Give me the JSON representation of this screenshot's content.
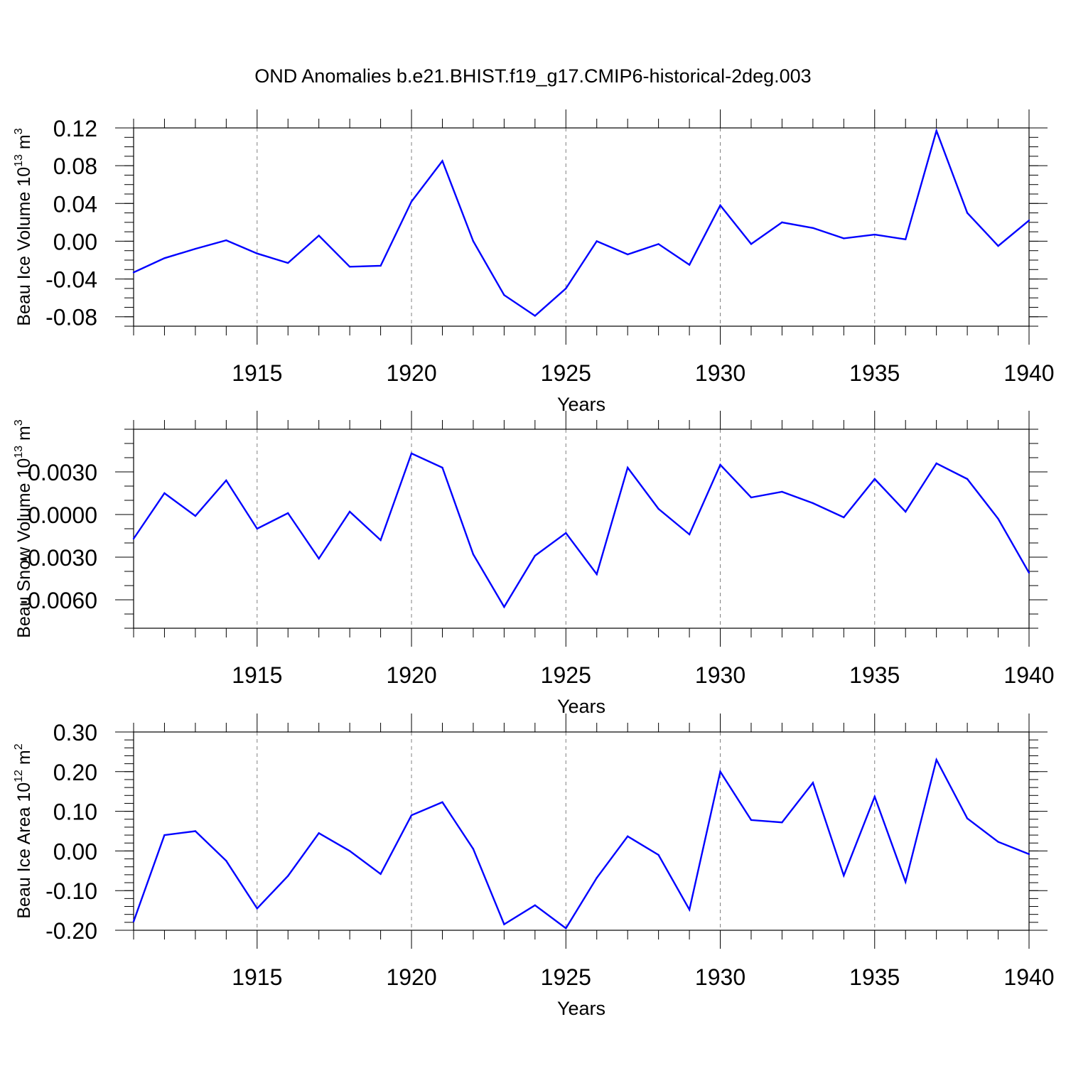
{
  "title": "OND Anomalies b.e21.BHIST.f19_g17.CMIP6-historical-2deg.003",
  "colors": {
    "line": "#0000ff",
    "axis": "#000000",
    "grid": "#808080",
    "background": "#ffffff"
  },
  "chart_data": [
    {
      "type": "line",
      "name": "panel-ice-volume",
      "ylabel": "Beau Ice Volume 10",
      "ylabel_sup": "13",
      "ylabel_unit": " m",
      "ylabel_unit_sup": "3",
      "xlabel": "Years",
      "xlim": [
        1911,
        1940
      ],
      "ylim": [
        -0.09,
        0.12
      ],
      "yticks": [
        -0.08,
        -0.04,
        0.0,
        0.04,
        0.08,
        0.12
      ],
      "ytick_labels": [
        "-0.08",
        "-0.04",
        "0.00",
        "0.04",
        "0.08",
        "0.12"
      ],
      "yminor_step": 0.01,
      "xticks": [
        1915,
        1920,
        1925,
        1930,
        1935,
        1940
      ],
      "xtick_labels": [
        "1915",
        "1920",
        "1925",
        "1930",
        "1935",
        "1940"
      ],
      "grid": "vertical-dashed",
      "x": [
        1911,
        1912,
        1913,
        1914,
        1915,
        1916,
        1917,
        1918,
        1919,
        1920,
        1921,
        1922,
        1923,
        1924,
        1925,
        1926,
        1927,
        1928,
        1929,
        1930,
        1931,
        1932,
        1933,
        1934,
        1935,
        1936,
        1937,
        1938,
        1939,
        1940
      ],
      "values": [
        -0.033,
        -0.018,
        -0.008,
        0.001,
        -0.013,
        -0.023,
        0.006,
        -0.027,
        -0.026,
        0.042,
        0.085,
        0.0,
        -0.057,
        -0.079,
        -0.05,
        0.0,
        -0.014,
        -0.003,
        -0.025,
        0.038,
        -0.003,
        0.02,
        0.014,
        0.003,
        0.007,
        0.002,
        0.117,
        0.03,
        -0.005,
        0.022
      ]
    },
    {
      "type": "line",
      "name": "panel-snow-volume",
      "ylabel": "Beau Snow Volume 10",
      "ylabel_sup": "13",
      "ylabel_unit": " m",
      "ylabel_unit_sup": "3",
      "xlabel": "Years",
      "xlim": [
        1911,
        1940
      ],
      "ylim": [
        -0.008,
        0.006
      ],
      "yticks": [
        -0.006,
        -0.003,
        0.0,
        0.003
      ],
      "ytick_labels": [
        "-0.0060",
        "-0.0030",
        "0.0000",
        "0.0030"
      ],
      "yminor_step": 0.001,
      "xticks": [
        1915,
        1920,
        1925,
        1930,
        1935,
        1940
      ],
      "xtick_labels": [
        "1915",
        "1920",
        "1925",
        "1930",
        "1935",
        "1940"
      ],
      "grid": "vertical-dashed",
      "x": [
        1911,
        1912,
        1913,
        1914,
        1915,
        1916,
        1917,
        1918,
        1919,
        1920,
        1921,
        1922,
        1923,
        1924,
        1925,
        1926,
        1927,
        1928,
        1929,
        1930,
        1931,
        1932,
        1933,
        1934,
        1935,
        1936,
        1937,
        1938,
        1939,
        1940
      ],
      "values": [
        -0.0017,
        0.0015,
        -0.0001,
        0.0024,
        -0.001,
        0.0001,
        -0.0031,
        0.0002,
        -0.0018,
        0.0043,
        0.0033,
        -0.0028,
        -0.0065,
        -0.0029,
        -0.0013,
        -0.0042,
        0.0033,
        0.0004,
        -0.0014,
        0.0035,
        0.0012,
        0.0016,
        0.0008,
        -0.0002,
        0.0025,
        0.0002,
        0.0036,
        0.0025,
        -0.0003,
        -0.0041
      ]
    },
    {
      "type": "line",
      "name": "panel-ice-area",
      "ylabel": "Beau Ice Area 10",
      "ylabel_sup": "12",
      "ylabel_unit": " m",
      "ylabel_unit_sup": "2",
      "xlabel": "Years",
      "xlim": [
        1911,
        1940
      ],
      "ylim": [
        -0.2,
        0.3
      ],
      "yticks": [
        -0.2,
        -0.1,
        0.0,
        0.1,
        0.2,
        0.3
      ],
      "ytick_labels": [
        "-0.20",
        "-0.10",
        "0.00",
        "0.10",
        "0.20",
        "0.30"
      ],
      "yminor_step": 0.02,
      "xticks": [
        1915,
        1920,
        1925,
        1930,
        1935,
        1940
      ],
      "xtick_labels": [
        "1915",
        "1920",
        "1925",
        "1930",
        "1935",
        "1940"
      ],
      "grid": "vertical-dashed",
      "x": [
        1911,
        1912,
        1913,
        1914,
        1915,
        1916,
        1917,
        1918,
        1919,
        1920,
        1921,
        1922,
        1923,
        1924,
        1925,
        1926,
        1927,
        1928,
        1929,
        1930,
        1931,
        1932,
        1933,
        1934,
        1935,
        1936,
        1937,
        1938,
        1939,
        1940
      ],
      "values": [
        -0.178,
        0.04,
        0.05,
        -0.025,
        -0.145,
        -0.063,
        0.045,
        0.0,
        -0.058,
        0.09,
        0.123,
        0.005,
        -0.185,
        -0.137,
        -0.195,
        -0.068,
        0.037,
        -0.01,
        -0.148,
        0.2,
        0.078,
        0.072,
        0.172,
        -0.062,
        0.137,
        -0.078,
        0.23,
        0.082,
        0.023,
        -0.008
      ]
    }
  ]
}
